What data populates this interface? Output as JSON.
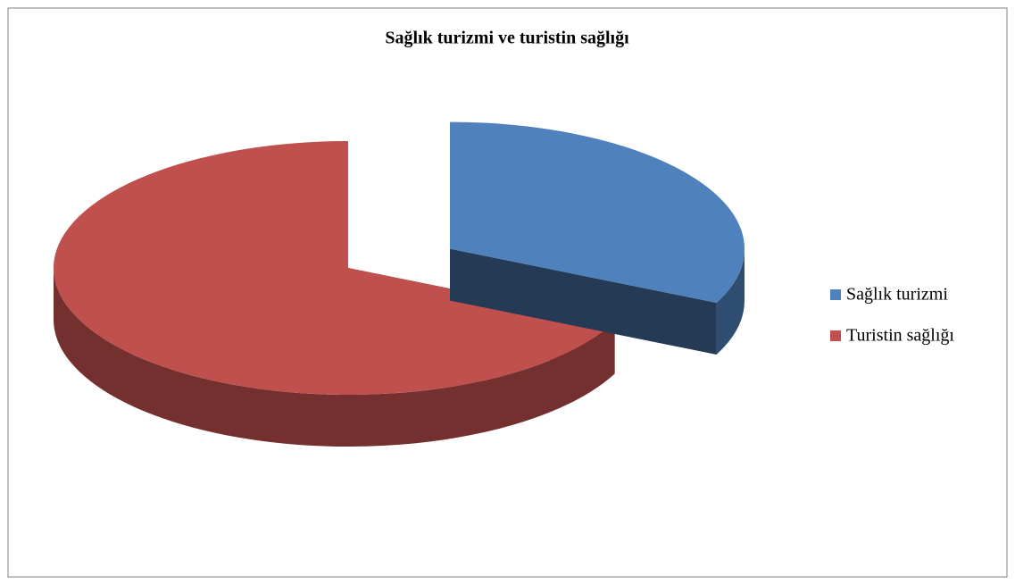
{
  "chart_data": {
    "type": "pie",
    "title": "Sağlık turizmi ve turistin sağlığı",
    "categories": [
      "Sağlık turizmi",
      "Turistin sağlığı"
    ],
    "values": [
      32,
      68
    ],
    "colors": [
      "#4f81bd",
      "#c0504d"
    ],
    "exploded": [
      0
    ],
    "legend": "right"
  }
}
